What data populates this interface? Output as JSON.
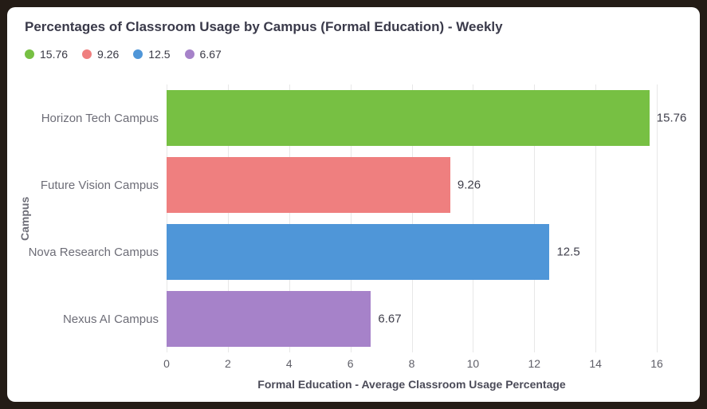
{
  "chart_data": {
    "type": "bar",
    "orientation": "horizontal",
    "title": "Percentages of Classroom Usage by Campus (Formal Education) - Weekly",
    "categories": [
      "Horizon Tech Campus",
      "Future Vision Campus",
      "Nova Research Campus",
      "Nexus AI Campus"
    ],
    "values": [
      15.76,
      9.26,
      12.5,
      6.67
    ],
    "value_labels": [
      "15.76",
      "9.26",
      "12.5",
      "6.67"
    ],
    "colors": [
      "#77c043",
      "#ef7f7f",
      "#4f96d8",
      "#a682c9"
    ],
    "xlabel": "Formal Education - Average Classroom Usage Percentage",
    "ylabel": "Campus",
    "xlim": [
      0,
      16
    ],
    "xticks": [
      0,
      2,
      4,
      6,
      8,
      10,
      12,
      14,
      16
    ],
    "grid": true,
    "legend_position": "top-left"
  },
  "legend": [
    {
      "label": "15.76",
      "color": "#77c043"
    },
    {
      "label": "9.26",
      "color": "#ef7f7f"
    },
    {
      "label": "12.5",
      "color": "#4f96d8"
    },
    {
      "label": "6.67",
      "color": "#a682c9"
    }
  ]
}
